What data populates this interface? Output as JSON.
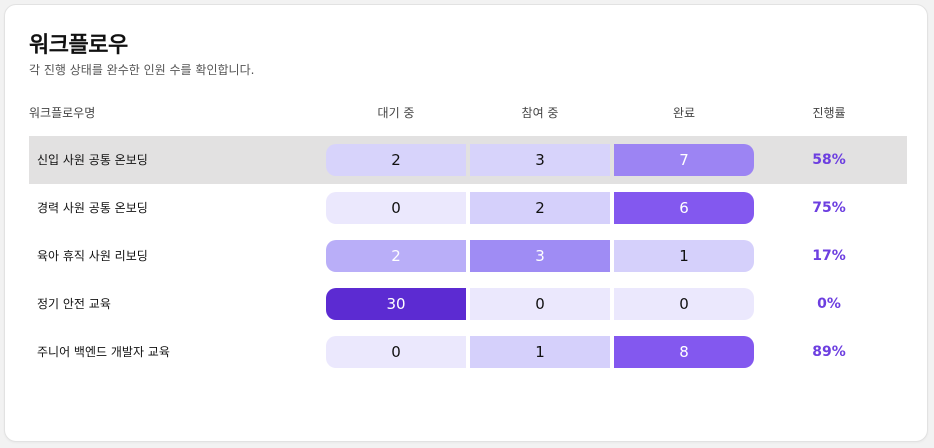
{
  "header": {
    "title": "워크플로우",
    "subtitle": "각 진행 상태를 완수한 인원 수를 확인합니다."
  },
  "table": {
    "columns": {
      "name": "워크플로우명",
      "waiting": "대기 중",
      "participating": "참여 중",
      "completed": "완료",
      "progress": "진행률"
    },
    "rows": [
      {
        "name": "신입 사원 공통 온보딩",
        "waiting": "2",
        "participating": "3",
        "completed": "7",
        "progress": "58%",
        "highlighted": true,
        "colors": [
          "#d7d3fb",
          "#d7d3fb",
          "#9c84f3"
        ],
        "text_colors": [
          "#111111",
          "#111111",
          "#ffffff"
        ]
      },
      {
        "name": "경력 사원 공통 온보딩",
        "waiting": "0",
        "participating": "2",
        "completed": "6",
        "progress": "75%",
        "highlighted": false,
        "colors": [
          "#ebe8fd",
          "#d5d0fb",
          "#8358ef"
        ],
        "text_colors": [
          "#111111",
          "#111111",
          "#ffffff"
        ]
      },
      {
        "name": "육아 휴직 사원 리보딩",
        "waiting": "2",
        "participating": "3",
        "completed": "1",
        "progress": "17%",
        "highlighted": false,
        "colors": [
          "#b9aef8",
          "#9f8cf4",
          "#d5d0fb"
        ],
        "text_colors": [
          "#ffffff",
          "#ffffff",
          "#111111"
        ]
      },
      {
        "name": "정기 안전 교육",
        "waiting": "30",
        "participating": "0",
        "completed": "0",
        "progress": "0%",
        "highlighted": false,
        "colors": [
          "#5c2bd2",
          "#ebe8fd",
          "#ebe8fd"
        ],
        "text_colors": [
          "#ffffff",
          "#111111",
          "#111111"
        ]
      },
      {
        "name": "주니어 백엔드 개발자 교육",
        "waiting": "0",
        "participating": "1",
        "completed": "8",
        "progress": "89%",
        "highlighted": false,
        "colors": [
          "#ebe8fd",
          "#d5d0fb",
          "#8358ef"
        ],
        "text_colors": [
          "#111111",
          "#111111",
          "#ffffff"
        ]
      }
    ]
  }
}
